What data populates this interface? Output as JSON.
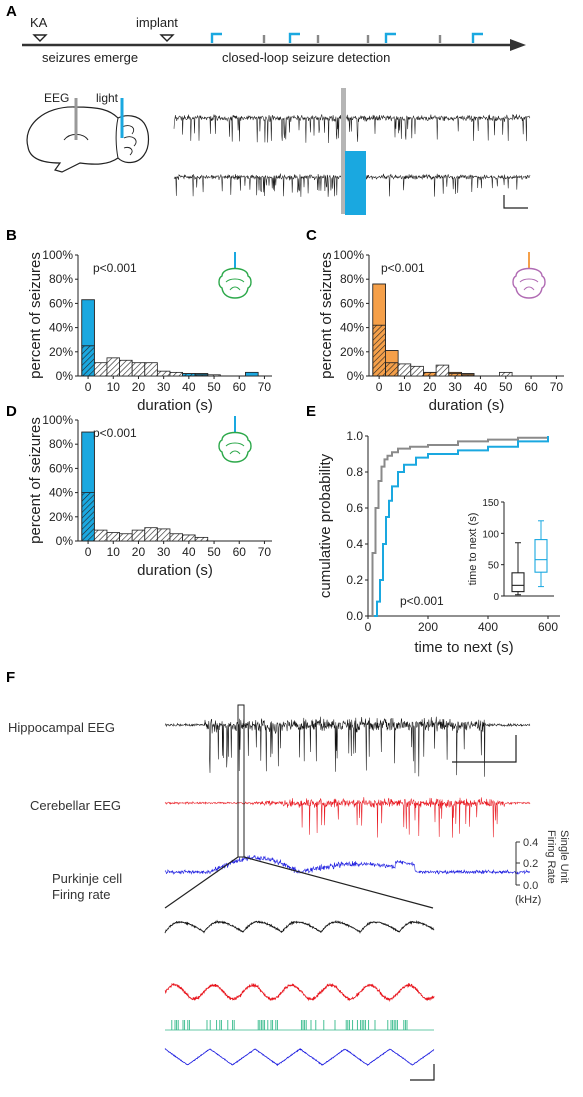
{
  "panels": {
    "A": {
      "letter": "A",
      "timeline": {
        "ka_label": "KA",
        "implant_label": "implant",
        "seizures_label": "seizures emerge",
        "detection_label": "closed-loop seizure detection"
      },
      "brain_labels": {
        "eeg": "EEG",
        "light": "light"
      }
    },
    "B": {
      "letter": "B",
      "pvalue": "p<0.001"
    },
    "C": {
      "letter": "C",
      "pvalue": "p<0.001"
    },
    "D": {
      "letter": "D",
      "pvalue": "p<0.001"
    },
    "E": {
      "letter": "E",
      "pvalue": "p<0.001"
    },
    "F": {
      "letter": "F",
      "trace_labels": {
        "hippocampal": "Hippocampal EEG",
        "cerebellar": "Cerebellar EEG",
        "purkinje_line1": "Purkinje cell",
        "purkinje_line2": "Firing rate"
      },
      "right_axis": {
        "title_line1": "Single Unit",
        "title_line2": "Firing Rate",
        "unit": "(kHz)",
        "ticks": [
          "0.4",
          "0.2",
          "0.0"
        ]
      }
    }
  },
  "colors": {
    "light_blue": "#1aa8e0",
    "orange": "#f5a04a",
    "green_mouse": "#2ca84a",
    "purple_mouse": "#b06ab3",
    "eeg_black": "#111111",
    "eeg_red": "#e8141c",
    "purkinje_blue": "#1d1de0",
    "spike_green": "#34b98a",
    "gray_cdf": "#8a8a8a"
  },
  "chart_data": [
    {
      "panel": "B",
      "type": "bar",
      "ylabel": "percent of seizures",
      "xlabel": "duration (s)",
      "x_ticks": [
        "0",
        "10",
        "20",
        "30",
        "40",
        "50",
        "60",
        "70"
      ],
      "y_ticks": [
        "0%",
        "20%",
        "40%",
        "60%",
        "80%",
        "100%"
      ],
      "ylim": [
        0,
        100
      ],
      "xlim": [
        -4,
        73
      ],
      "bin_width": 5,
      "series": [
        {
          "x": [
            0,
            5,
            10,
            15,
            20,
            25,
            30,
            35,
            40,
            45,
            50,
            55,
            60,
            65
          ],
          "values": [
            63,
            7,
            6,
            6,
            7,
            5,
            1,
            0,
            2,
            2,
            0,
            0,
            0,
            3
          ]
        },
        {
          "x": [
            0,
            5,
            10,
            15,
            20,
            25,
            30,
            35,
            40,
            45,
            50,
            55,
            60,
            65
          ],
          "values": [
            25,
            11,
            15,
            13,
            11,
            11,
            4,
            3,
            2,
            1,
            1,
            0,
            0,
            0
          ]
        }
      ]
    },
    {
      "panel": "C",
      "type": "bar",
      "ylabel": "percent of seizures",
      "xlabel": "duration (s)",
      "x_ticks": [
        "0",
        "10",
        "20",
        "30",
        "40",
        "50",
        "60",
        "70"
      ],
      "y_ticks": [
        "0%",
        "20%",
        "40%",
        "60%",
        "80%",
        "100%"
      ],
      "ylim": [
        0,
        100
      ],
      "xlim": [
        -4,
        73
      ],
      "bin_width": 5,
      "series": [
        {
          "x": [
            0,
            5,
            10,
            15,
            20,
            25,
            30,
            35,
            40,
            45,
            50
          ],
          "values": [
            76,
            21,
            7,
            2,
            3,
            0,
            3,
            2,
            0,
            0,
            0
          ]
        },
        {
          "x": [
            0,
            5,
            10,
            15,
            20,
            25,
            30,
            35,
            40,
            45,
            50
          ],
          "values": [
            42,
            11,
            10,
            8,
            3,
            9,
            2,
            1,
            0,
            0,
            3
          ]
        }
      ]
    },
    {
      "panel": "D",
      "type": "bar",
      "ylabel": "percent of seizures",
      "xlabel": "duration (s)",
      "x_ticks": [
        "0",
        "10",
        "20",
        "30",
        "40",
        "50",
        "60",
        "70"
      ],
      "y_ticks": [
        "0%",
        "20%",
        "40%",
        "60%",
        "80%",
        "100%"
      ],
      "ylim": [
        0,
        100
      ],
      "xlim": [
        -4,
        73
      ],
      "bin_width": 5,
      "series": [
        {
          "x": [
            0,
            5,
            10,
            15,
            20,
            25,
            30,
            35,
            40,
            45,
            50
          ],
          "values": [
            90,
            3,
            5,
            5,
            2,
            1,
            0,
            0,
            0,
            0,
            0
          ]
        },
        {
          "x": [
            0,
            5,
            10,
            15,
            20,
            25,
            30,
            35,
            40,
            45,
            50
          ],
          "values": [
            40,
            9,
            7,
            6,
            9,
            11,
            10,
            6,
            5,
            3,
            0
          ]
        }
      ]
    },
    {
      "panel": "E",
      "type": "line",
      "ylabel": "cumulative probability",
      "xlabel": "time to next (s)",
      "x_ticks": [
        "0",
        "200",
        "400",
        "600"
      ],
      "y_ticks": [
        "0.0",
        "0.2",
        "0.4",
        "0.6",
        "0.8",
        "1.0"
      ],
      "xlim": [
        0,
        640
      ],
      "ylim": [
        0,
        1
      ],
      "series": [
        {
          "x": [
            5,
            15,
            25,
            35,
            45,
            55,
            65,
            80,
            100,
            140,
            200,
            300,
            400,
            500,
            600
          ],
          "values": [
            0.0,
            0.35,
            0.6,
            0.75,
            0.83,
            0.87,
            0.89,
            0.91,
            0.93,
            0.94,
            0.95,
            0.97,
            0.98,
            0.99,
            1.0
          ]
        },
        {
          "x": [
            20,
            30,
            40,
            50,
            60,
            70,
            80,
            100,
            120,
            160,
            200,
            300,
            400,
            500,
            600
          ],
          "values": [
            0.0,
            0.08,
            0.2,
            0.4,
            0.55,
            0.64,
            0.72,
            0.8,
            0.84,
            0.88,
            0.9,
            0.92,
            0.94,
            0.97,
            1.0
          ]
        }
      ],
      "inset": {
        "type": "box",
        "ylabel": "time to next (s)",
        "y_ticks": [
          "0",
          "50",
          "100",
          "150"
        ],
        "ylim": [
          0,
          150
        ],
        "boxes": [
          {
            "whisker_low": 2,
            "q1": 7,
            "median": 17,
            "q3": 37,
            "whisker_high": 85
          },
          {
            "whisker_low": 15,
            "q1": 38,
            "median": 58,
            "q3": 90,
            "whisker_high": 120
          }
        ]
      }
    }
  ]
}
